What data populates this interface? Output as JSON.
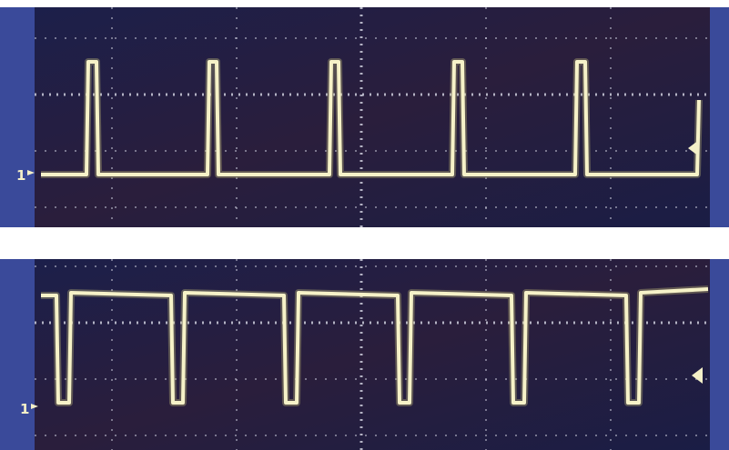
{
  "panels": [
    {
      "channel_label": "1"
    },
    {
      "channel_label": "1"
    }
  ]
}
